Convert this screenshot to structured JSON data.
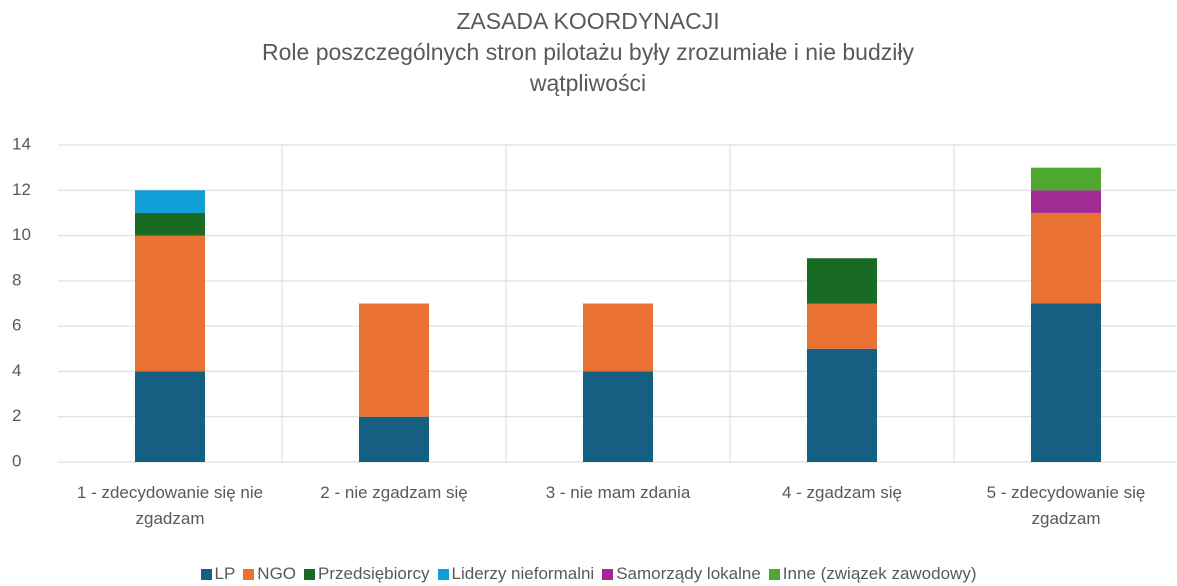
{
  "chart_data": {
    "type": "stacked_bar",
    "title": "ZASADA KOORDYNACJI",
    "subtitle": "Role poszczególnych stron  pilotażu  były zrozumiałe i nie budziły wątpliwości",
    "categories": [
      "1 - zdecydowanie się nie zgadzam",
      "2 - nie zgadzam się",
      "3 - nie mam zdania",
      "4 - zgadzam się",
      "5 - zdecydowanie się zgadzam"
    ],
    "series": [
      {
        "name": "LP",
        "color": "#156082",
        "values": [
          4,
          2,
          4,
          5,
          7
        ]
      },
      {
        "name": "NGO",
        "color": "#e97132",
        "values": [
          6,
          5,
          3,
          2,
          4
        ]
      },
      {
        "name": "Przedsiębiorcy",
        "color": "#196b24",
        "values": [
          1,
          0,
          0,
          2,
          0
        ]
      },
      {
        "name": "Liderzy nieformalni",
        "color": "#0f9ed5",
        "values": [
          1,
          0,
          0,
          0,
          0
        ]
      },
      {
        "name": "Samorządy lokalne",
        "color": "#a02b93",
        "values": [
          0,
          0,
          0,
          0,
          1
        ]
      },
      {
        "name": "Inne (związek zawodowy)",
        "color": "#4ea72e",
        "values": [
          0,
          0,
          0,
          0,
          1
        ]
      }
    ],
    "ylim": [
      0,
      14
    ],
    "yticks": [
      0,
      2,
      4,
      6,
      8,
      10,
      12,
      14
    ],
    "grid": true,
    "legend": "bottom"
  }
}
